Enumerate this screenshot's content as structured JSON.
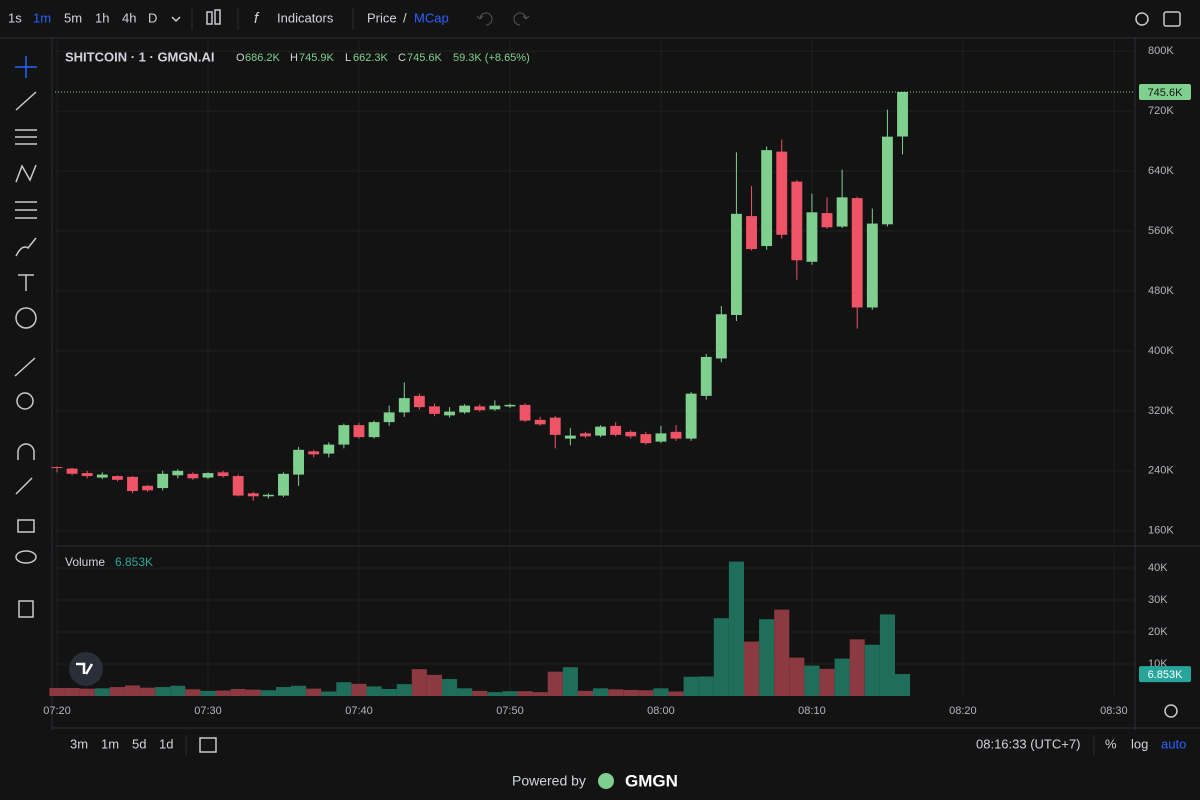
{
  "toolbar": {
    "intervals": [
      "1s",
      "1m",
      "5m",
      "1h",
      "4h",
      "D"
    ],
    "indicators": "Indicators",
    "price": "Price",
    "separator": "/",
    "mcap": "MCap"
  },
  "chart_data": {
    "type": "candlestick",
    "legend": {
      "symbol": "SHITCOIN · 1 · GMGN.AI",
      "open_label": "O",
      "open": "686.2K",
      "high_label": "H",
      "high": "745.9K",
      "low_label": "L",
      "low": "662.3K",
      "close_label": "C",
      "close": "745.6K",
      "change": "59.3K (+8.65%)"
    },
    "x": [
      "07:20",
      "07:21",
      "07:22",
      "07:23",
      "07:24",
      "07:25",
      "07:26",
      "07:27",
      "07:28",
      "07:29",
      "07:30",
      "07:31",
      "07:32",
      "07:33",
      "07:34",
      "07:35",
      "07:36",
      "07:37",
      "07:38",
      "07:39",
      "07:40",
      "07:41",
      "07:42",
      "07:43",
      "07:44",
      "07:45",
      "07:46",
      "07:47",
      "07:48",
      "07:49",
      "07:50",
      "07:51",
      "07:52",
      "07:53",
      "07:54",
      "07:55",
      "07:56",
      "07:57",
      "07:58",
      "07:59",
      "08:00",
      "08:01",
      "08:02",
      "08:03",
      "08:04",
      "08:05",
      "08:06",
      "08:07",
      "08:08",
      "08:09",
      "08:10",
      "08:11",
      "08:12",
      "08:13",
      "08:14",
      "08:15",
      "08:16"
    ],
    "open": [
      245000,
      243000,
      237000,
      231000,
      233000,
      232000,
      220000,
      217000,
      234000,
      236000,
      231000,
      238000,
      233000,
      210000,
      206000,
      207000,
      235000,
      266000,
      263000,
      275000,
      301000,
      285000,
      305000,
      318000,
      340000,
      326000,
      314000,
      318000,
      326000,
      322000,
      326000,
      328000,
      308000,
      311000,
      283000,
      290000,
      287000,
      300000,
      292000,
      289000,
      279000,
      292000,
      283000,
      340000,
      390000,
      448000,
      580000,
      540000,
      666000,
      626000,
      519000,
      584000,
      566000,
      604000,
      458000,
      569000,
      686200
    ],
    "high": [
      246000,
      244000,
      240000,
      238000,
      234000,
      233000,
      221000,
      240000,
      242000,
      238000,
      238000,
      240000,
      235000,
      212000,
      210000,
      238000,
      272000,
      268000,
      278000,
      303000,
      304000,
      307000,
      327000,
      358000,
      343000,
      330000,
      325000,
      329000,
      329000,
      334000,
      330000,
      330000,
      312000,
      313000,
      297000,
      292000,
      301000,
      305000,
      294000,
      292000,
      300000,
      301000,
      345000,
      396000,
      460000,
      665000,
      620000,
      673000,
      682000,
      628000,
      610000,
      605000,
      642000,
      606000,
      590000,
      722000,
      745900
    ],
    "low": [
      238000,
      234000,
      230000,
      229000,
      226000,
      210000,
      212000,
      214000,
      230000,
      228000,
      229000,
      231000,
      206000,
      200000,
      203000,
      205000,
      220000,
      258000,
      258000,
      270000,
      283000,
      283000,
      300000,
      312000,
      322000,
      313000,
      311000,
      316000,
      319000,
      320000,
      324000,
      305000,
      300000,
      270000,
      274000,
      284000,
      285000,
      286000,
      283000,
      275000,
      277000,
      280000,
      280000,
      335000,
      385000,
      440000,
      534000,
      535000,
      550000,
      495000,
      515000,
      563000,
      564000,
      430000,
      455000,
      566000,
      662300
    ],
    "close": [
      244000,
      236000,
      233000,
      235000,
      228000,
      213000,
      214000,
      236000,
      240000,
      230000,
      237000,
      233000,
      207000,
      206000,
      208000,
      236000,
      268000,
      262000,
      275000,
      301000,
      285000,
      305000,
      318000,
      337000,
      325000,
      316000,
      319000,
      327000,
      321000,
      327000,
      328000,
      307000,
      302000,
      288000,
      287000,
      286000,
      299000,
      288000,
      286000,
      277000,
      290000,
      283000,
      343000,
      392000,
      449000,
      583000,
      536000,
      668000,
      555000,
      521000,
      585000,
      565000,
      605000,
      458000,
      570000,
      686000,
      745600
    ],
    "up_color": "#7fd08e",
    "down_color": "#ef5366",
    "ylim": [
      141000,
      815000
    ],
    "yticks": [
      {
        "value": 160000,
        "label": "160K"
      },
      {
        "value": 240000,
        "label": "240K"
      },
      {
        "value": 320000,
        "label": "320K"
      },
      {
        "value": 400000,
        "label": "400K"
      },
      {
        "value": 480000,
        "label": "480K"
      },
      {
        "value": 560000,
        "label": "560K"
      },
      {
        "value": 640000,
        "label": "640K"
      },
      {
        "value": 720000,
        "label": "720K"
      },
      {
        "value": 800000,
        "label": "800K"
      }
    ],
    "last_value_label": "745.6K",
    "xlim": [
      "07:20",
      "08:31"
    ],
    "xticks": [
      "07:20",
      "07:30",
      "07:40",
      "07:50",
      "08:00",
      "08:10",
      "08:20",
      "08:30"
    ],
    "grid": true,
    "volume": {
      "title": "Volume",
      "last_value_label": "6.853K",
      "values": [
        2500,
        2500,
        2300,
        2400,
        2800,
        3300,
        2600,
        2800,
        3200,
        2100,
        1600,
        1700,
        2200,
        2000,
        1800,
        2800,
        3200,
        2300,
        1400,
        4300,
        3800,
        3000,
        2200,
        3700,
        8400,
        6600,
        5300,
        2400,
        1600,
        1200,
        1500,
        1500,
        1200,
        7600,
        9000,
        1600,
        2400,
        2100,
        1900,
        1800,
        2400,
        1400,
        6000,
        6100,
        24300,
        42000,
        17000,
        24000,
        27000,
        12000,
        9500,
        8500,
        11700,
        17700,
        16000,
        25500,
        6853
      ],
      "up_color": "#1f6e5c",
      "down_color": "#8a3a40",
      "ylim": [
        0,
        45000
      ],
      "yticks": [
        {
          "value": 10000,
          "label": "10K"
        },
        {
          "value": 20000,
          "label": "20K"
        },
        {
          "value": 30000,
          "label": "30K"
        },
        {
          "value": 40000,
          "label": "40K"
        }
      ]
    }
  },
  "bottom": {
    "ranges": [
      "3m",
      "1m",
      "5d",
      "1d"
    ],
    "time": "08:16:33 (UTC+7)",
    "percent": "%",
    "log": "log",
    "auto": "auto"
  },
  "footer": {
    "powered": "Powered by",
    "brand": "GMGN"
  }
}
